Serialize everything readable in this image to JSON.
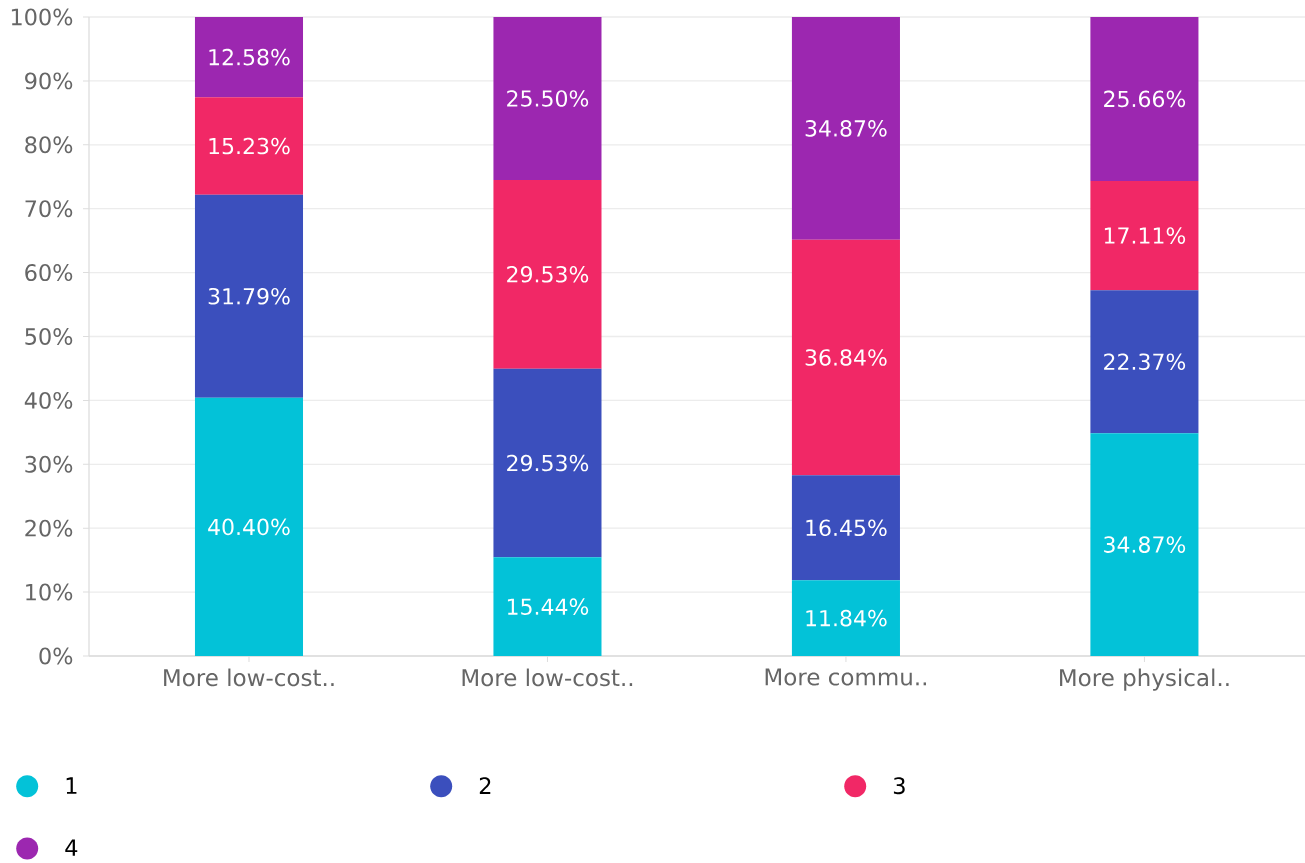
{
  "chart_data": {
    "type": "bar",
    "stacked": true,
    "categories": [
      "More low-cost..",
      "More low-cost..",
      "More commu..",
      "More physical.."
    ],
    "series": [
      {
        "name": "1",
        "color": "#03c2d8",
        "values": [
          40.4,
          15.44,
          11.84,
          34.87
        ],
        "value_labels": [
          "40.40%",
          "15.44%",
          "11.84%",
          "34.87%"
        ]
      },
      {
        "name": "2",
        "color": "#3b4fbd",
        "values": [
          31.79,
          29.53,
          16.45,
          22.37
        ],
        "value_labels": [
          "31.79%",
          "29.53%",
          "16.45%",
          "22.37%"
        ]
      },
      {
        "name": "3",
        "color": "#f12866",
        "values": [
          15.23,
          29.53,
          36.84,
          17.11
        ],
        "value_labels": [
          "15.23%",
          "29.53%",
          "36.84%",
          "17.11%"
        ]
      },
      {
        "name": "4",
        "color": "#9c27b0",
        "values": [
          12.58,
          25.5,
          34.87,
          25.66
        ],
        "value_labels": [
          "12.58%",
          "25.50%",
          "34.87%",
          "25.66%"
        ]
      }
    ],
    "ylim": [
      0,
      100
    ],
    "yticks": [
      {
        "value": 0,
        "label": "0%"
      },
      {
        "value": 10,
        "label": "10%"
      },
      {
        "value": 20,
        "label": "20%"
      },
      {
        "value": 30,
        "label": "30%"
      },
      {
        "value": 40,
        "label": "40%"
      },
      {
        "value": 50,
        "label": "50%"
      },
      {
        "value": 60,
        "label": "60%"
      },
      {
        "value": 70,
        "label": "70%"
      },
      {
        "value": 80,
        "label": "80%"
      },
      {
        "value": 90,
        "label": "90%"
      },
      {
        "value": 100,
        "label": "100%"
      }
    ],
    "grid": "y",
    "legend": "bottom"
  }
}
